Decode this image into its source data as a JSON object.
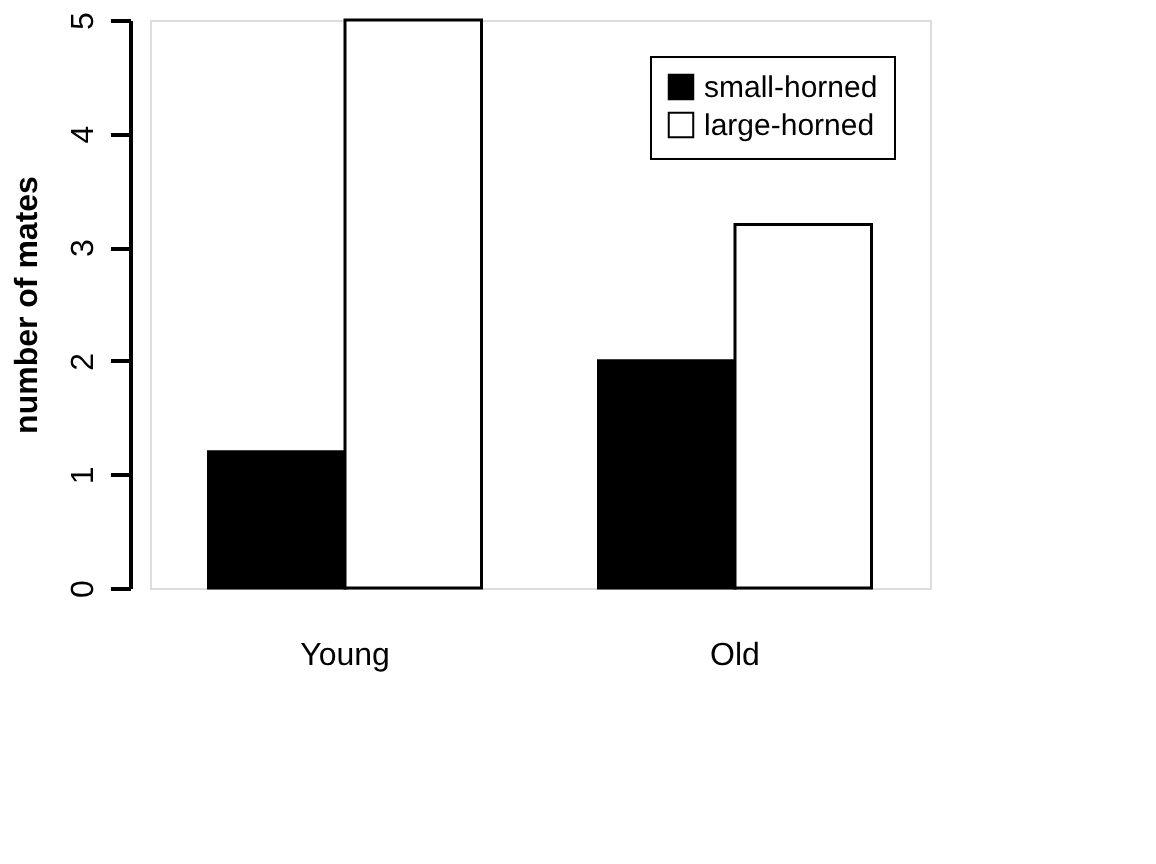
{
  "chart_data": {
    "type": "bar",
    "ylabel": "number of mates",
    "categories": [
      "Young",
      "Old"
    ],
    "series": [
      {
        "name": "small-horned",
        "color": "#000000",
        "values": [
          1.2,
          2.0
        ]
      },
      {
        "name": "large-horned",
        "color": "#ffffff",
        "values": [
          5.0,
          3.2
        ]
      }
    ],
    "ylim": [
      0,
      5
    ],
    "yticks": [
      0,
      1,
      2,
      3,
      4,
      5
    ],
    "grid": false,
    "legend": "top right"
  }
}
